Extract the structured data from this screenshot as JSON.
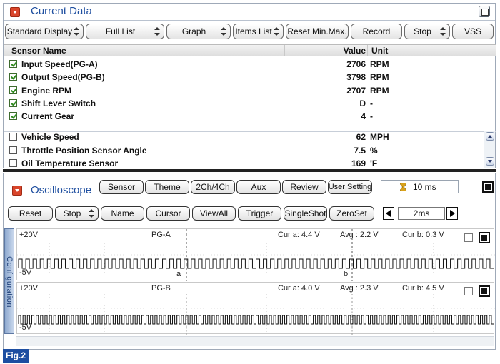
{
  "current_data": {
    "title": "Current Data",
    "toolbar": [
      {
        "label": "Standard Display",
        "dropdown": true
      },
      {
        "label": "Full List",
        "dropdown": true
      },
      {
        "label": "Graph",
        "dropdown": true
      },
      {
        "label": "Items List",
        "dropdown": true
      },
      {
        "label": "Reset Min.Max.",
        "dropdown": false
      },
      {
        "label": "Record",
        "dropdown": false
      },
      {
        "label": "Stop",
        "dropdown": true
      },
      {
        "label": "VSS",
        "dropdown": false
      }
    ],
    "columns": {
      "name": "Sensor Name",
      "value": "Value",
      "unit": "Unit"
    },
    "rows": [
      {
        "name": "Input Speed(PG-A)",
        "value": "2706",
        "unit": "RPM",
        "checked": true
      },
      {
        "name": "Output Speed(PG-B)",
        "value": "3798",
        "unit": "RPM",
        "checked": true
      },
      {
        "name": "Engine RPM",
        "value": "2707",
        "unit": "RPM",
        "checked": true
      },
      {
        "name": "Shift Lever Switch",
        "value": "D",
        "unit": "-",
        "checked": true
      },
      {
        "name": "Current Gear",
        "value": "4",
        "unit": "-",
        "checked": true
      },
      {
        "name": "Vehicle Speed",
        "value": "62",
        "unit": "MPH",
        "checked": false
      },
      {
        "name": "Throttle Position Sensor Angle",
        "value": "7.5",
        "unit": "%",
        "checked": false
      },
      {
        "name": "Oil Temperature Sensor",
        "value": "169",
        "unit": "'F",
        "checked": false
      }
    ]
  },
  "oscilloscope": {
    "title": "Oscilloscope",
    "top_buttons": [
      "Sensor",
      "Theme",
      "2Ch/4Ch",
      "Aux",
      "Review",
      "User Setting"
    ],
    "time_display": "10 ms",
    "control_buttons": [
      {
        "label": "Reset",
        "dropdown": false
      },
      {
        "label": "Stop",
        "dropdown": true
      },
      {
        "label": "Name",
        "dropdown": false
      },
      {
        "label": "Cursor",
        "dropdown": false
      },
      {
        "label": "ViewAll",
        "dropdown": false
      },
      {
        "label": "Trigger",
        "dropdown": false
      },
      {
        "label": "SingleShot",
        "dropdown": false
      },
      {
        "label": "ZeroSet",
        "dropdown": false
      }
    ],
    "zoom": "2ms",
    "side_tab": "Configuration",
    "channels": [
      {
        "max": "+20V",
        "min": "-5V",
        "name": "PG-A",
        "cur_a": "Cur a: 4.4 V",
        "avg": "Avg : 2.2 V",
        "cur_b": "Cur b: 0.3 V",
        "cursor_a": "a",
        "cursor_b": "b",
        "pulses": 66
      },
      {
        "max": "+20V",
        "min": "-5V",
        "name": "PG-B",
        "cur_a": "Cur a: 4.0 V",
        "avg": "Avg : 2.3 V",
        "cur_b": "Cur b: 4.5 V",
        "pulses": 108
      }
    ]
  },
  "figure_label": "Fig.2",
  "colors": {
    "title": "#1f4fa0",
    "collapse": "#d9452b",
    "fig_label": "#1d4ea1"
  }
}
